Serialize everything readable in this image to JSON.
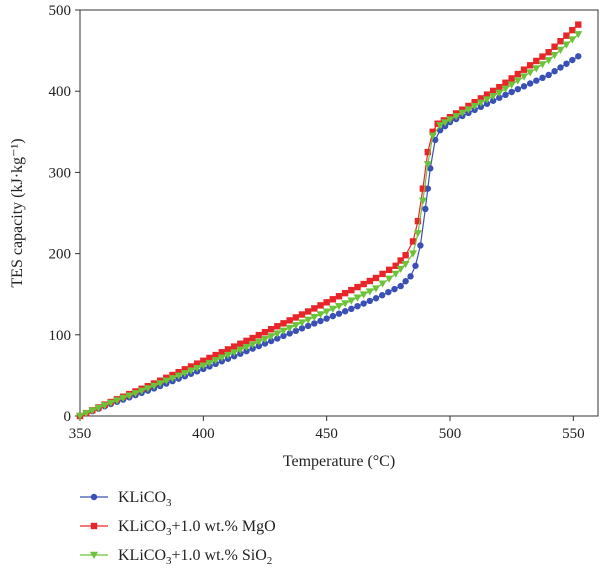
{
  "chart_data": {
    "type": "line",
    "xlabel": "Temperature (°C)",
    "ylabel": "TES capacity (kJ·kg⁻¹)",
    "xlim": [
      350,
      560
    ],
    "ylim": [
      0,
      500
    ],
    "xticks": [
      350,
      400,
      450,
      500,
      550
    ],
    "yticks": [
      0,
      100,
      200,
      300,
      400,
      500
    ],
    "grid": false,
    "legend_position": "bottom",
    "series": [
      {
        "name": "KLiCO3",
        "legend_main": "KLiCO",
        "legend_sub": "3",
        "legend_tail": "",
        "color": "#3a50b4",
        "marker": "circle",
        "points": [
          [
            350,
            0
          ],
          [
            360,
            12
          ],
          [
            380,
            34
          ],
          [
            400,
            58
          ],
          [
            420,
            83
          ],
          [
            440,
            108
          ],
          [
            460,
            132
          ],
          [
            470,
            145
          ],
          [
            480,
            160
          ],
          [
            484,
            172
          ],
          [
            486,
            185
          ],
          [
            488,
            210
          ],
          [
            490,
            255
          ],
          [
            491,
            280
          ],
          [
            492,
            305
          ],
          [
            494,
            340
          ],
          [
            496,
            352
          ],
          [
            500,
            362
          ],
          [
            520,
            392
          ],
          [
            540,
            420
          ],
          [
            552,
            443
          ]
        ]
      },
      {
        "name": "KLiCO3+1.0 wt.% MgO",
        "legend_main": "KLiCO",
        "legend_sub": "3",
        "legend_tail": "+1.0 wt.% MgO",
        "color": "#e8262a",
        "marker": "square",
        "points": [
          [
            350,
            0
          ],
          [
            360,
            14
          ],
          [
            380,
            40
          ],
          [
            400,
            68
          ],
          [
            420,
            96
          ],
          [
            440,
            125
          ],
          [
            460,
            155
          ],
          [
            470,
            170
          ],
          [
            478,
            185
          ],
          [
            482,
            198
          ],
          [
            485,
            215
          ],
          [
            487,
            240
          ],
          [
            489,
            280
          ],
          [
            491,
            325
          ],
          [
            493,
            350
          ],
          [
            495,
            360
          ],
          [
            500,
            368
          ],
          [
            520,
            405
          ],
          [
            540,
            448
          ],
          [
            552,
            482
          ]
        ]
      },
      {
        "name": "KLiCO3+1.0 wt.% SiO2",
        "legend_main": "KLiCO",
        "legend_sub": "3",
        "legend_tail": "+1.0 wt.% SiO",
        "legend_tail_sub": "2",
        "color": "#6cc33a",
        "marker": "triangle-down",
        "points": [
          [
            350,
            0
          ],
          [
            360,
            13
          ],
          [
            380,
            37
          ],
          [
            400,
            62
          ],
          [
            420,
            88
          ],
          [
            440,
            115
          ],
          [
            460,
            142
          ],
          [
            470,
            157
          ],
          [
            478,
            175
          ],
          [
            482,
            187
          ],
          [
            485,
            200
          ],
          [
            487,
            225
          ],
          [
            489,
            265
          ],
          [
            491,
            310
          ],
          [
            493,
            345
          ],
          [
            496,
            358
          ],
          [
            500,
            365
          ],
          [
            520,
            398
          ],
          [
            540,
            438
          ],
          [
            552,
            470
          ]
        ]
      }
    ]
  }
}
